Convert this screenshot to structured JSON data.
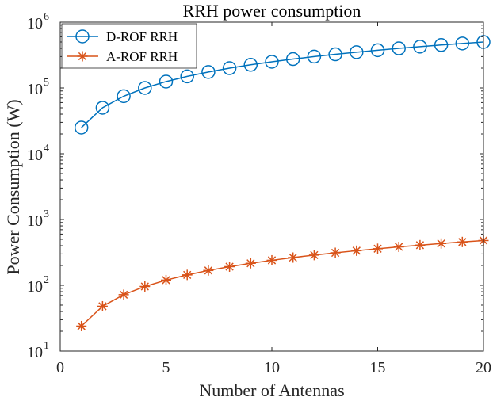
{
  "chart_data": {
    "type": "line",
    "title": "RRH power consumption",
    "xlabel": "Number of Antennas",
    "ylabel": "Power Consumption (W)",
    "x": [
      1,
      2,
      3,
      4,
      5,
      6,
      7,
      8,
      9,
      10,
      11,
      12,
      13,
      14,
      15,
      16,
      17,
      18,
      19,
      20
    ],
    "xlim": [
      0,
      20
    ],
    "ylim": [
      10,
      1000000
    ],
    "yscale": "log",
    "x_ticks": [
      0,
      5,
      10,
      15,
      20
    ],
    "y_ticks": [
      10,
      100,
      1000,
      10000,
      100000,
      1000000
    ],
    "y_tick_labels": [
      {
        "base": "10",
        "exp": "1"
      },
      {
        "base": "10",
        "exp": "2"
      },
      {
        "base": "10",
        "exp": "3"
      },
      {
        "base": "10",
        "exp": "4"
      },
      {
        "base": "10",
        "exp": "5"
      },
      {
        "base": "10",
        "exp": "6"
      }
    ],
    "grid": false,
    "legend_position": "top-left",
    "series": [
      {
        "name": "D-ROF RRH",
        "color": "#0072BD",
        "marker": "circle",
        "values": [
          25000,
          50000,
          75000,
          100000,
          125000,
          150000,
          175000,
          200000,
          225000,
          250000,
          275000,
          300000,
          325000,
          350000,
          375000,
          400000,
          425000,
          450000,
          475000,
          500000
        ]
      },
      {
        "name": "A-ROF RRH",
        "color": "#D95319",
        "marker": "asterisk",
        "values": [
          24,
          48,
          72,
          96,
          120,
          144,
          168,
          192,
          216,
          240,
          264,
          288,
          312,
          336,
          360,
          384,
          408,
          432,
          456,
          480
        ]
      }
    ]
  }
}
